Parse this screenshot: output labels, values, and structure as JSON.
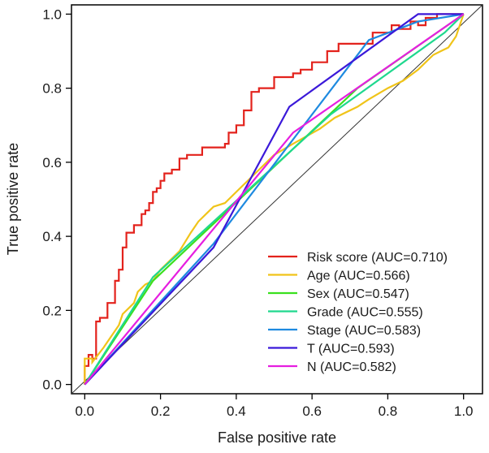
{
  "chart_data": {
    "type": "line",
    "title": "",
    "xlabel": "False positive rate",
    "ylabel": "True positive rate",
    "xlim": [
      -0.035,
      1.05
    ],
    "ylim": [
      -0.025,
      1.025
    ],
    "xticks": [
      "0.0",
      "0.2",
      "0.4",
      "0.6",
      "0.8",
      "1.0"
    ],
    "yticks": [
      "0.0",
      "0.2",
      "0.4",
      "0.6",
      "0.8",
      "1.0"
    ],
    "xtick_values": [
      0,
      0.2,
      0.4,
      0.6,
      0.8,
      1.0
    ],
    "ytick_values": [
      0,
      0.2,
      0.4,
      0.6,
      0.8,
      1.0
    ],
    "grid": false,
    "legend_position": "bottom-right",
    "reference_line": {
      "from": [
        -0.035,
        -0.025
      ],
      "to": [
        1.05,
        1.025
      ],
      "color": "#333333"
    },
    "series": [
      {
        "name": "Risk score (AUC=0.710)",
        "color": "#e3221c",
        "x": [
          0,
          0,
          0.01,
          0.01,
          0.02,
          0.02,
          0.03,
          0.03,
          0.04,
          0.04,
          0.06,
          0.06,
          0.08,
          0.08,
          0.09,
          0.09,
          0.1,
          0.1,
          0.11,
          0.11,
          0.12,
          0.12,
          0.13,
          0.13,
          0.15,
          0.15,
          0.16,
          0.16,
          0.17,
          0.17,
          0.18,
          0.18,
          0.19,
          0.19,
          0.2,
          0.2,
          0.21,
          0.21,
          0.22,
          0.22,
          0.23,
          0.23,
          0.25,
          0.25,
          0.27,
          0.27,
          0.31,
          0.31,
          0.37,
          0.37,
          0.38,
          0.38,
          0.4,
          0.4,
          0.42,
          0.42,
          0.44,
          0.44,
          0.45,
          0.45,
          0.46,
          0.46,
          0.5,
          0.5,
          0.55,
          0.55,
          0.57,
          0.57,
          0.6,
          0.6,
          0.64,
          0.64,
          0.67,
          0.67,
          0.72,
          0.72,
          0.76,
          0.76,
          0.81,
          0.81,
          0.83,
          0.83,
          0.86,
          0.86,
          0.88,
          0.88,
          0.9,
          0.9,
          0.93,
          0.93,
          1.0
        ],
        "y": [
          0,
          0.05,
          0.05,
          0.08,
          0.08,
          0.07,
          0.07,
          0.17,
          0.17,
          0.18,
          0.18,
          0.22,
          0.22,
          0.28,
          0.28,
          0.31,
          0.31,
          0.37,
          0.37,
          0.41,
          0.41,
          0.41,
          0.41,
          0.43,
          0.43,
          0.46,
          0.46,
          0.47,
          0.47,
          0.49,
          0.49,
          0.52,
          0.52,
          0.53,
          0.53,
          0.55,
          0.55,
          0.57,
          0.57,
          0.57,
          0.57,
          0.58,
          0.58,
          0.61,
          0.61,
          0.62,
          0.62,
          0.64,
          0.64,
          0.65,
          0.65,
          0.68,
          0.68,
          0.7,
          0.7,
          0.74,
          0.74,
          0.79,
          0.79,
          0.79,
          0.79,
          0.8,
          0.8,
          0.83,
          0.83,
          0.84,
          0.84,
          0.85,
          0.85,
          0.87,
          0.87,
          0.9,
          0.9,
          0.92,
          0.92,
          0.92,
          0.92,
          0.95,
          0.95,
          0.97,
          0.97,
          0.96,
          0.96,
          0.98,
          0.98,
          0.97,
          0.97,
          0.99,
          0.99,
          1.0,
          1.0
        ]
      },
      {
        "name": "Age (AUC=0.566)",
        "color": "#f0c419",
        "x": [
          0,
          0,
          0.02,
          0.02,
          0.05,
          0.09,
          0.1,
          0.12,
          0.13,
          0.14,
          0.16,
          0.18,
          0.2,
          0.22,
          0.25,
          0.28,
          0.3,
          0.34,
          0.37,
          0.4,
          0.45,
          0.5,
          0.55,
          0.62,
          0.66,
          0.72,
          0.75,
          0.8,
          0.84,
          0.88,
          0.9,
          0.92,
          0.94,
          0.96,
          0.98,
          1.0
        ],
        "y": [
          0,
          0.07,
          0.07,
          0.06,
          0.1,
          0.16,
          0.19,
          0.21,
          0.22,
          0.25,
          0.27,
          0.28,
          0.31,
          0.33,
          0.36,
          0.41,
          0.44,
          0.48,
          0.49,
          0.52,
          0.57,
          0.62,
          0.65,
          0.69,
          0.72,
          0.75,
          0.77,
          0.8,
          0.82,
          0.85,
          0.87,
          0.89,
          0.9,
          0.91,
          0.94,
          1.0
        ]
      },
      {
        "name": "Sex  (AUC=0.547)",
        "color": "#3ae01e",
        "x": [
          0,
          0.18,
          0.72,
          1.0
        ],
        "y": [
          0,
          0.28,
          0.8,
          1.0
        ]
      },
      {
        "name": "Grade (AUC=0.555)",
        "color": "#1fd88e",
        "x": [
          0,
          0.18,
          0.65,
          0.95,
          1.0
        ],
        "y": [
          0,
          0.29,
          0.73,
          0.95,
          1.0
        ]
      },
      {
        "name": "Stage (AUC=0.583)",
        "color": "#1e8ae0",
        "x": [
          0,
          0.34,
          0.75,
          0.88,
          1.0
        ],
        "y": [
          0,
          0.38,
          0.93,
          0.98,
          1.0
        ]
      },
      {
        "name": "T (AUC=0.593)",
        "color": "#3b19d9",
        "x": [
          0,
          0.34,
          0.54,
          0.88,
          1.0
        ],
        "y": [
          0,
          0.37,
          0.75,
          1.0,
          1.0
        ]
      },
      {
        "name": "N (AUC=0.582)",
        "color": "#e61ee0",
        "x": [
          0,
          0.55,
          1.0
        ],
        "y": [
          0,
          0.68,
          1.0
        ]
      }
    ]
  }
}
